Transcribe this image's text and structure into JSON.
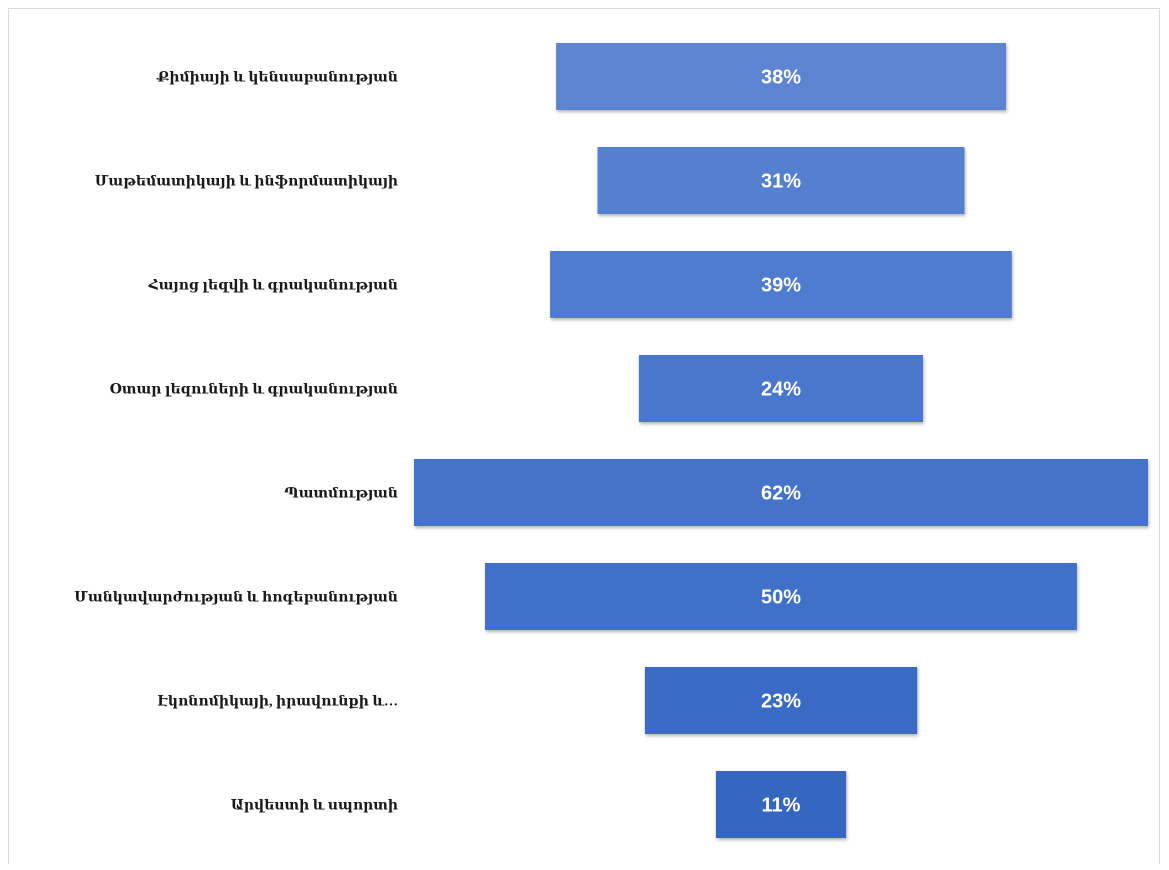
{
  "chart_data": {
    "type": "bar",
    "orientation": "horizontal-funnel",
    "categories": [
      "Քիմիայի և կենսաբանության",
      "Մաթեմատիկայի և ինֆորմատիկայի",
      "Հայոց լեզվի և գրականության",
      "Օտար լեզուների և գրականության",
      "Պատմության",
      "Մանկավարժության և հոգեբանության",
      "Էկոնոմիկայի, իրավունքի և…",
      "Արվեստի և սպորտի"
    ],
    "values": [
      38,
      31,
      39,
      24,
      62,
      50,
      23,
      11
    ],
    "value_labels": [
      "38%",
      "31%",
      "39%",
      "24%",
      "62%",
      "50%",
      "23%",
      "11%"
    ],
    "unit": "%",
    "xlim": [
      0,
      62
    ],
    "bar_colors": [
      "#5b84d1",
      "#5580d0",
      "#4f7bcf",
      "#4a77cc",
      "#4473ca",
      "#3f6fc7",
      "#3a6bc4",
      "#3466c0"
    ],
    "legend": "none",
    "grid": false
  }
}
